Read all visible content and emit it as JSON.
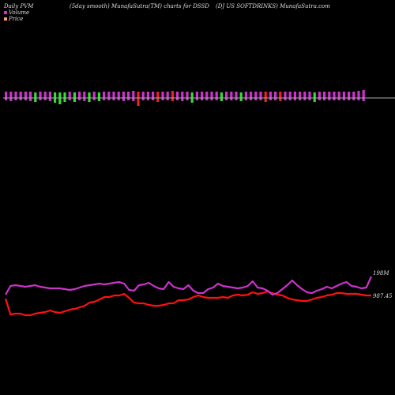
{
  "header": {
    "left": "Daily PVM",
    "middle": "(5day smooth) MunafaSutra(TM) charts for DSSD",
    "right": "(DJ US SOFTDRINKS) MunafaSutra.com"
  },
  "colors": {
    "background": "#000000",
    "volume_line": "#cc33cc",
    "price_line": "#ff1111",
    "bar_magenta": "#cc33cc",
    "bar_green": "#33dd33",
    "bar_red": "#ee2222",
    "baseline": "#aaaaaa"
  },
  "chart_data": {
    "type": "line",
    "legend": [
      {
        "label": "Volume",
        "color": "#cc33cc"
      },
      {
        "label": "Price",
        "color": "#ff9966"
      }
    ],
    "value_labels": {
      "volume": "198M",
      "price": "987.45"
    },
    "bars": {
      "colors": [
        "m",
        "m",
        "m",
        "m",
        "m",
        "m",
        "g",
        "m",
        "m",
        "m",
        "g",
        "g",
        "g",
        "m",
        "g",
        "m",
        "m",
        "g",
        "m",
        "g",
        "m",
        "m",
        "m",
        "m",
        "m",
        "m",
        "m",
        "r",
        "m",
        "m",
        "m",
        "r",
        "m",
        "m",
        "r",
        "m",
        "m",
        "m",
        "g",
        "m",
        "m",
        "m",
        "m",
        "m",
        "g",
        "m",
        "m",
        "m",
        "g",
        "m",
        "m",
        "m",
        "m",
        "r",
        "m",
        "m",
        "r",
        "m",
        "m",
        "m",
        "m",
        "m",
        "m",
        "g",
        "m",
        "m",
        "m",
        "m",
        "m",
        "m",
        "m",
        "m",
        "m",
        "m"
      ],
      "up": [
        8,
        8,
        8,
        8,
        8,
        8,
        7,
        8,
        8,
        8,
        7,
        7,
        7,
        8,
        7,
        8,
        8,
        7,
        8,
        7,
        8,
        8,
        8,
        8,
        8,
        8,
        9,
        8,
        8,
        8,
        8,
        8,
        8,
        8,
        9,
        8,
        8,
        8,
        7,
        8,
        8,
        8,
        8,
        8,
        7,
        8,
        8,
        8,
        7,
        8,
        8,
        8,
        8,
        8,
        8,
        8,
        8,
        8,
        8,
        8,
        8,
        8,
        8,
        7,
        8,
        8,
        8,
        8,
        8,
        8,
        8,
        8,
        9,
        10
      ],
      "down": [
        3,
        4,
        3,
        3,
        3,
        4,
        5,
        3,
        3,
        4,
        6,
        8,
        5,
        3,
        5,
        3,
        4,
        5,
        3,
        4,
        3,
        3,
        3,
        3,
        4,
        3,
        4,
        10,
        3,
        3,
        3,
        5,
        3,
        3,
        4,
        3,
        4,
        3,
        6,
        3,
        3,
        3,
        3,
        3,
        4,
        3,
        3,
        3,
        4,
        3,
        3,
        3,
        3,
        5,
        3,
        3,
        4,
        3,
        3,
        3,
        3,
        3,
        3,
        5,
        3,
        3,
        3,
        3,
        3,
        3,
        3,
        3,
        3,
        4
      ]
    },
    "series": [
      {
        "values": [
          373,
          362,
          361,
          362,
          363,
          362,
          361,
          363,
          364,
          365,
          365,
          365,
          366,
          367,
          366,
          364,
          362,
          361,
          360,
          359,
          360,
          359,
          358,
          357,
          359,
          367,
          368,
          361,
          360,
          358,
          362,
          365,
          366,
          357,
          363,
          365,
          366,
          361,
          368,
          371,
          371,
          366,
          364,
          359,
          362,
          363,
          364,
          365,
          364,
          362,
          356,
          364,
          365,
          368,
          373,
          371,
          366,
          361,
          355,
          361,
          366,
          370,
          371,
          368,
          366,
          363,
          365,
          362,
          359,
          357,
          362,
          363,
          365,
          364,
          350
        ]
      },
      {
        "values": [
          378,
          398,
          397,
          397,
          399,
          399,
          397,
          396,
          395,
          393,
          395,
          396,
          394,
          392,
          391,
          389,
          387,
          383,
          382,
          379,
          376,
          376,
          374,
          374,
          372,
          377,
          383,
          384,
          384,
          386,
          387,
          387,
          386,
          384,
          384,
          380,
          380,
          379,
          376,
          374,
          376,
          377,
          377,
          377,
          376,
          377,
          374,
          373,
          374,
          373,
          370,
          372,
          371,
          369,
          371,
          373,
          374,
          377,
          379,
          380,
          381,
          381,
          379,
          377,
          376,
          374,
          373,
          371,
          371,
          372,
          372,
          372,
          373,
          374,
          374
        ]
      }
    ]
  }
}
